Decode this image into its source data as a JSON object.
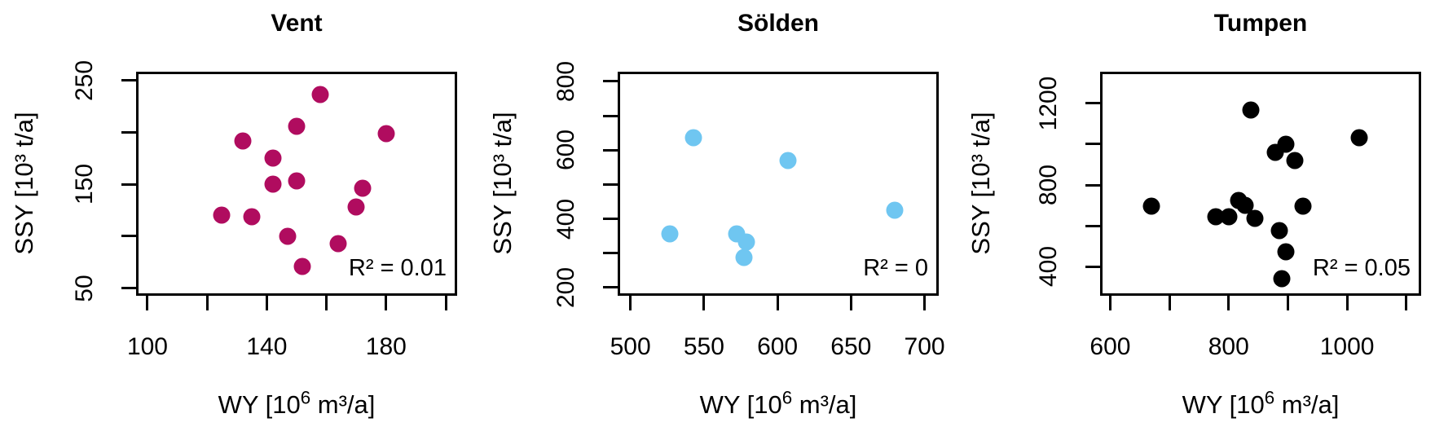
{
  "figure": {
    "background": "#ffffff",
    "axis_color": "#000000"
  },
  "chart_data": [
    {
      "type": "scatter",
      "title": "Vent",
      "point_color": "#B00C5F",
      "r2_label": "R² = 0.01",
      "ylabel": "SSY [10³ t/a]",
      "xlabel_parts": {
        "pre": "WY [10",
        "sup": "6",
        "post": " m³/a]"
      },
      "xlim": [
        97,
        203
      ],
      "ylim": [
        45,
        256
      ],
      "x_ticks": [
        {
          "value": 100,
          "label": "100"
        },
        {
          "value": 120,
          "label": ""
        },
        {
          "value": 140,
          "label": "140"
        },
        {
          "value": 160,
          "label": ""
        },
        {
          "value": 180,
          "label": "180"
        },
        {
          "value": 200,
          "label": ""
        }
      ],
      "y_ticks": [
        {
          "value": 50,
          "label": "50"
        },
        {
          "value": 100,
          "label": ""
        },
        {
          "value": 150,
          "label": "150"
        },
        {
          "value": 200,
          "label": ""
        },
        {
          "value": 250,
          "label": "250"
        }
      ],
      "points": [
        [
          158,
          236
        ],
        [
          150,
          206
        ],
        [
          132,
          192
        ],
        [
          180,
          199
        ],
        [
          142,
          175
        ],
        [
          142,
          150
        ],
        [
          150,
          153
        ],
        [
          172,
          146
        ],
        [
          170,
          128
        ],
        [
          125,
          120
        ],
        [
          135,
          119
        ],
        [
          147,
          100
        ],
        [
          164,
          93
        ],
        [
          152,
          71
        ]
      ]
    },
    {
      "type": "scatter",
      "title": "Sölden",
      "point_color": "#6FC6F1",
      "r2_label": "R² = 0",
      "ylabel": "SSY [10³ t/a]",
      "xlabel_parts": {
        "pre": "WY [10",
        "sup": "6",
        "post": " m³/a]"
      },
      "xlim": [
        493,
        708
      ],
      "ylim": [
        183,
        821
      ],
      "x_ticks": [
        {
          "value": 500,
          "label": "500"
        },
        {
          "value": 550,
          "label": "550"
        },
        {
          "value": 600,
          "label": "600"
        },
        {
          "value": 650,
          "label": "650"
        },
        {
          "value": 700,
          "label": "700"
        }
      ],
      "y_ticks": [
        {
          "value": 200,
          "label": "200"
        },
        {
          "value": 300,
          "label": ""
        },
        {
          "value": 400,
          "label": "400"
        },
        {
          "value": 500,
          "label": ""
        },
        {
          "value": 600,
          "label": "600"
        },
        {
          "value": 700,
          "label": ""
        },
        {
          "value": 800,
          "label": "800"
        }
      ],
      "points": [
        [
          543,
          636
        ],
        [
          607,
          569
        ],
        [
          680,
          426
        ],
        [
          527,
          357
        ],
        [
          572,
          357
        ],
        [
          579,
          333
        ],
        [
          577,
          288
        ]
      ]
    },
    {
      "type": "scatter",
      "title": "Tumpen",
      "point_color": "#000000",
      "r2_label": "R² = 0.05",
      "ylabel": "SSY [10³ t/a]",
      "xlabel_parts": {
        "pre": "WY [10",
        "sup": "6",
        "post": " m³/a]"
      },
      "xlim": [
        587,
        1121
      ],
      "ylim": [
        270,
        1342
      ],
      "x_ticks": [
        {
          "value": 600,
          "label": "600"
        },
        {
          "value": 700,
          "label": ""
        },
        {
          "value": 800,
          "label": "800"
        },
        {
          "value": 900,
          "label": ""
        },
        {
          "value": 1000,
          "label": "1000"
        },
        {
          "value": 1100,
          "label": ""
        }
      ],
      "y_ticks": [
        {
          "value": 400,
          "label": "400"
        },
        {
          "value": 600,
          "label": ""
        },
        {
          "value": 800,
          "label": "800"
        },
        {
          "value": 1000,
          "label": ""
        },
        {
          "value": 1200,
          "label": "1200"
        }
      ],
      "points": [
        [
          838,
          1165
        ],
        [
          1021,
          1030
        ],
        [
          897,
          1000
        ],
        [
          879,
          958
        ],
        [
          912,
          918
        ],
        [
          670,
          698
        ],
        [
          778,
          645
        ],
        [
          801,
          644
        ],
        [
          817,
          726
        ],
        [
          828,
          700
        ],
        [
          844,
          635
        ],
        [
          925,
          695
        ],
        [
          885,
          578
        ],
        [
          896,
          472
        ],
        [
          890,
          343
        ]
      ]
    }
  ]
}
